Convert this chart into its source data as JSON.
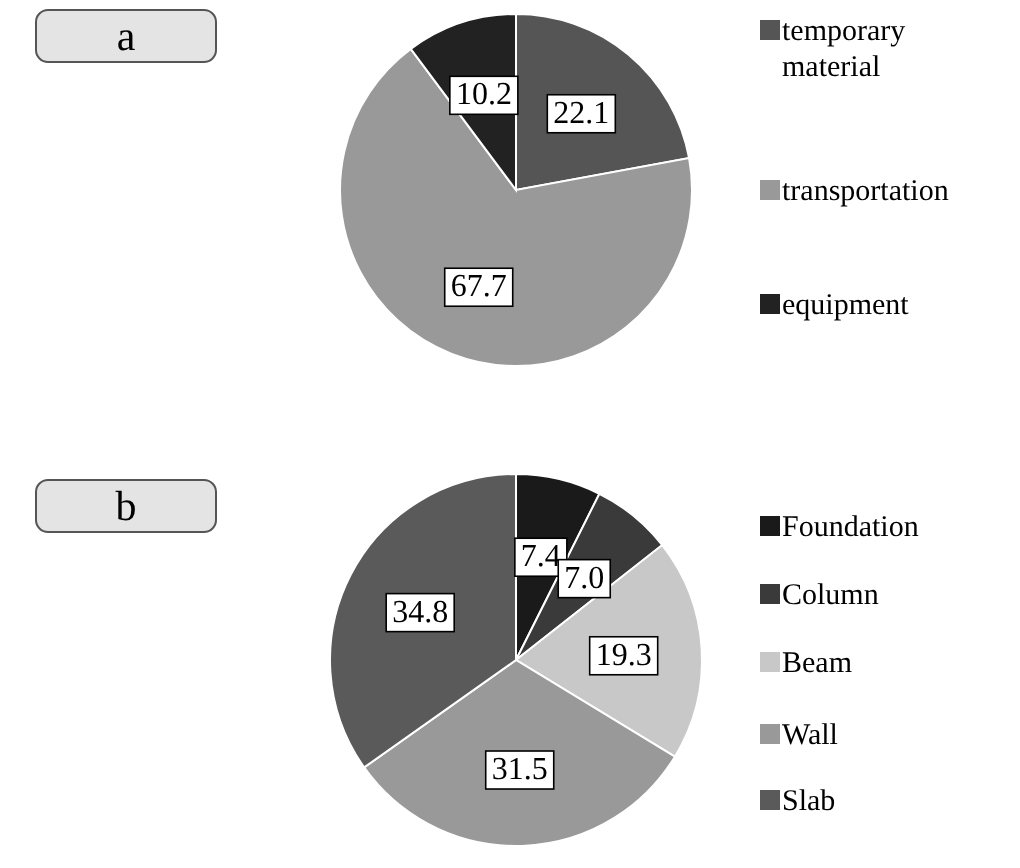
{
  "chart_data": [
    {
      "type": "pie",
      "title": "a",
      "categories": [
        "temporary material",
        "transportation",
        "equipment"
      ],
      "values": [
        22.1,
        67.7,
        10.2
      ],
      "colors": [
        "#555555",
        "#999999",
        "#222222"
      ],
      "data_labels": true,
      "legend": "right"
    },
    {
      "type": "pie",
      "title": "b",
      "categories": [
        "Foundation",
        "Column",
        "Beam",
        "Wall",
        "Slab"
      ],
      "values": [
        7.4,
        7.0,
        19.3,
        31.5,
        34.8
      ],
      "colors": [
        "#1a1a1a",
        "#3a3a3a",
        "#c8c8c8",
        "#999999",
        "#5a5a5a"
      ],
      "value_labels": [
        "7.4",
        "7.0",
        "19.3",
        "31.5",
        "34.8"
      ],
      "legend": "right"
    }
  ]
}
